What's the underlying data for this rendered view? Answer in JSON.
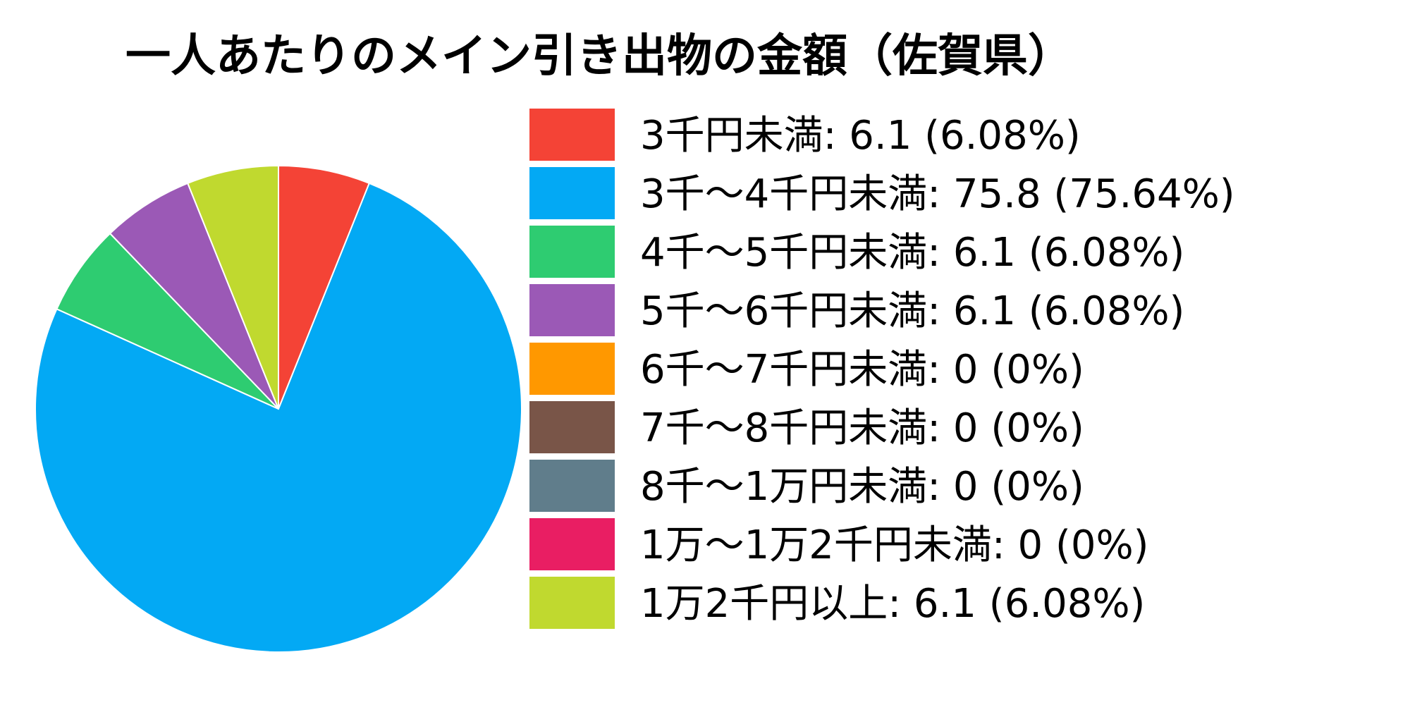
{
  "chart_data": {
    "type": "pie",
    "title": "一人あたりのメイン引き出物の金額（佐賀県）",
    "start_angle_deg": 0,
    "direction": "clockwise",
    "slices": [
      {
        "label": "3千円未満",
        "value": 6.1,
        "percent": 6.08,
        "legend_text": "3千円未満: 6.1 (6.08%)",
        "color": "#F44336"
      },
      {
        "label": "3千～4千円未満",
        "value": 75.8,
        "percent": 75.64,
        "legend_text": "3千～4千円未満: 75.8 (75.64%)",
        "color": "#03A9F4"
      },
      {
        "label": "4千～5千円未満",
        "value": 6.1,
        "percent": 6.08,
        "legend_text": "4千～5千円未満: 6.1 (6.08%)",
        "color": "#2ECC71"
      },
      {
        "label": "5千～6千円未満",
        "value": 6.1,
        "percent": 6.08,
        "legend_text": "5千～6千円未満: 6.1 (6.08%)",
        "color": "#9B59B6"
      },
      {
        "label": "6千～7千円未満",
        "value": 0,
        "percent": 0,
        "legend_text": "6千～7千円未満: 0 (0%)",
        "color": "#FF9800"
      },
      {
        "label": "7千～8千円未満",
        "value": 0,
        "percent": 0,
        "legend_text": "7千～8千円未満: 0 (0%)",
        "color": "#795548"
      },
      {
        "label": "8千～1万円未満",
        "value": 0,
        "percent": 0,
        "legend_text": "8千～1万円未満: 0 (0%)",
        "color": "#607D8B"
      },
      {
        "label": "1万～1万2千円未満",
        "value": 0,
        "percent": 0,
        "legend_text": "1万～1万2千円未満: 0 (0%)",
        "color": "#E91E63"
      },
      {
        "label": "1万2千円以上",
        "value": 6.1,
        "percent": 6.08,
        "legend_text": "1万2千円以上: 6.1 (6.08%)",
        "color": "#C0D92F"
      }
    ],
    "legend_position": "right"
  }
}
